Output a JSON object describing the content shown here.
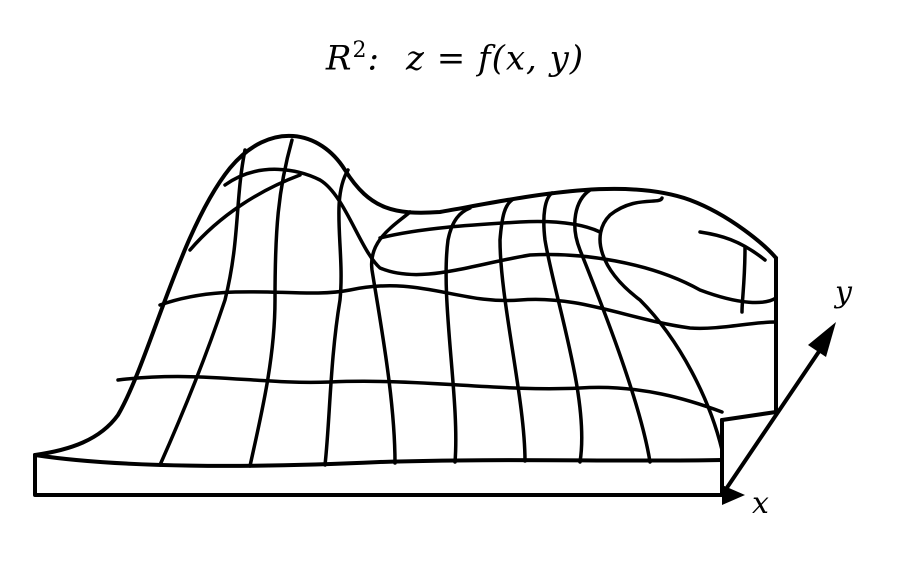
{
  "title": {
    "space": "R",
    "space_exponent": "2",
    "separator": ":",
    "equation": "z = f(x, y)"
  },
  "axes": {
    "x_label": "x",
    "y_label": "y"
  },
  "colors": {
    "ink": "#000000",
    "background": "#ffffff"
  }
}
